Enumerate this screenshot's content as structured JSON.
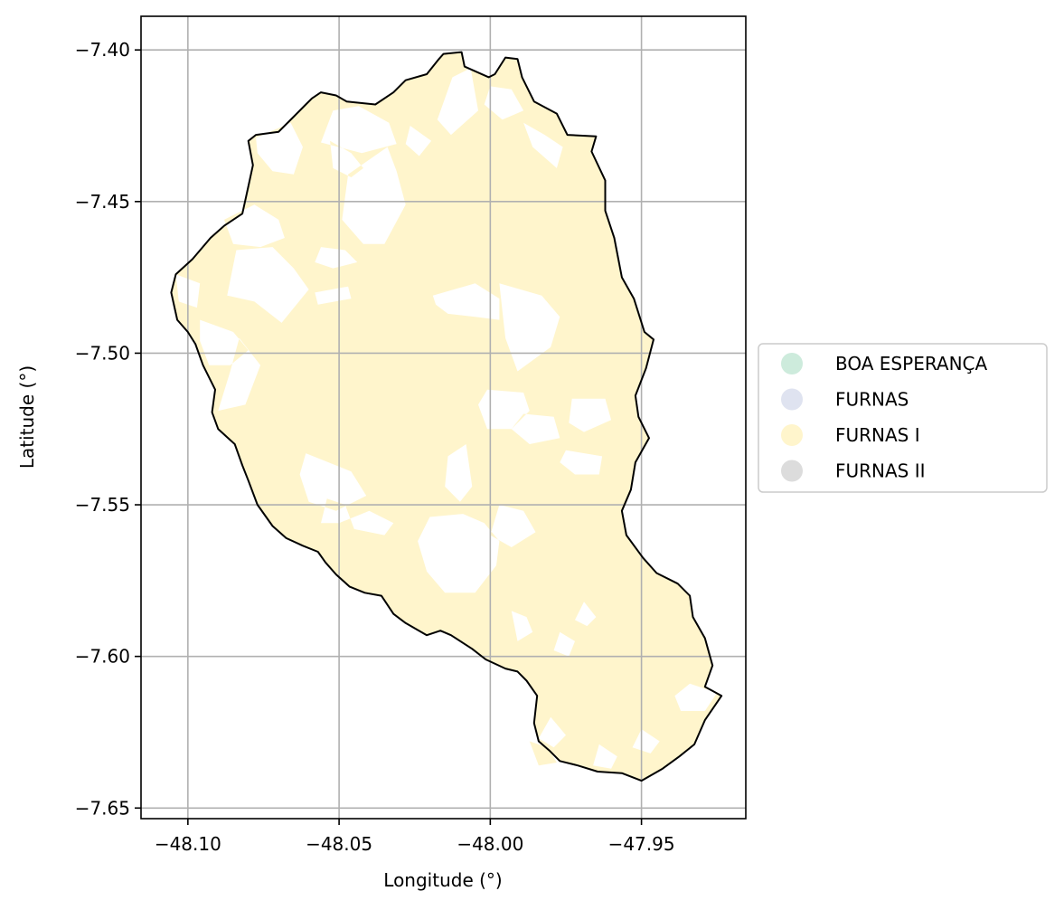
{
  "map": {
    "xlabel": "Longitude (°)",
    "ylabel": "Latitude (°)",
    "xlim": [
      -48.1155,
      -47.9155
    ],
    "ylim": [
      -7.6535,
      -7.3889
    ],
    "x_ticks": [
      {
        "value": -48.1,
        "label": "−48.10"
      },
      {
        "value": -48.05,
        "label": "−48.05"
      },
      {
        "value": -48.0,
        "label": "−48.00"
      },
      {
        "value": -47.95,
        "label": "−47.95"
      }
    ],
    "y_ticks": [
      {
        "value": -7.4,
        "label": "−7.40"
      },
      {
        "value": -7.45,
        "label": "−7.45"
      },
      {
        "value": -7.5,
        "label": "−7.50"
      },
      {
        "value": -7.55,
        "label": "−7.55"
      },
      {
        "value": -7.6,
        "label": "−7.60"
      },
      {
        "value": -7.65,
        "label": "−7.65"
      }
    ],
    "grid": true,
    "fill_color": "#fff5cc",
    "boundary_color": "#000000",
    "grid_color": "#b0b0b0",
    "boundary": [
      [
        -48.0155,
        -7.4013
      ],
      [
        -48.0095,
        -7.4007
      ],
      [
        -48.0085,
        -7.4055
      ],
      [
        -48.0005,
        -7.409
      ],
      [
        -47.9985,
        -7.408
      ],
      [
        -47.995,
        -7.4025
      ],
      [
        -47.991,
        -7.403
      ],
      [
        -47.9895,
        -7.409
      ],
      [
        -47.9855,
        -7.417
      ],
      [
        -47.978,
        -7.421
      ],
      [
        -47.9745,
        -7.428
      ],
      [
        -47.965,
        -7.4285
      ],
      [
        -47.9665,
        -7.4335
      ],
      [
        -47.962,
        -7.443
      ],
      [
        -47.962,
        -7.453
      ],
      [
        -47.959,
        -7.462
      ],
      [
        -47.9565,
        -7.475
      ],
      [
        -47.9525,
        -7.482
      ],
      [
        -47.949,
        -7.493
      ],
      [
        -47.946,
        -7.4955
      ],
      [
        -47.9485,
        -7.505
      ],
      [
        -47.952,
        -7.514
      ],
      [
        -47.951,
        -7.521
      ],
      [
        -47.9475,
        -7.528
      ],
      [
        -47.952,
        -7.536
      ],
      [
        -47.9535,
        -7.545
      ],
      [
        -47.9565,
        -7.552
      ],
      [
        -47.955,
        -7.56
      ],
      [
        -47.9495,
        -7.5675
      ],
      [
        -47.945,
        -7.5725
      ],
      [
        -47.938,
        -7.576
      ],
      [
        -47.934,
        -7.58
      ],
      [
        -47.933,
        -7.587
      ],
      [
        -47.929,
        -7.594
      ],
      [
        -47.9265,
        -7.603
      ],
      [
        -47.929,
        -7.61
      ],
      [
        -47.9235,
        -7.613
      ],
      [
        -47.929,
        -7.621
      ],
      [
        -47.9325,
        -7.629
      ],
      [
        -47.9375,
        -7.633
      ],
      [
        -47.943,
        -7.637
      ],
      [
        -47.95,
        -7.641
      ],
      [
        -47.9565,
        -7.6385
      ],
      [
        -47.9645,
        -7.638
      ],
      [
        -47.971,
        -7.636
      ],
      [
        -47.977,
        -7.6345
      ],
      [
        -47.9805,
        -7.631
      ],
      [
        -47.984,
        -7.628
      ],
      [
        -47.9855,
        -7.622
      ],
      [
        -47.9845,
        -7.613
      ],
      [
        -47.988,
        -7.608
      ],
      [
        -47.991,
        -7.605
      ],
      [
        -47.995,
        -7.604
      ],
      [
        -48.0015,
        -7.601
      ],
      [
        -48.006,
        -7.5975
      ],
      [
        -48.013,
        -7.593
      ],
      [
        -48.0165,
        -7.5915
      ],
      [
        -48.021,
        -7.593
      ],
      [
        -48.028,
        -7.589
      ],
      [
        -48.032,
        -7.586
      ],
      [
        -48.036,
        -7.58
      ],
      [
        -48.0415,
        -7.579
      ],
      [
        -48.0465,
        -7.577
      ],
      [
        -48.051,
        -7.573
      ],
      [
        -48.0545,
        -7.569
      ],
      [
        -48.057,
        -7.5655
      ],
      [
        -48.062,
        -7.5635
      ],
      [
        -48.0675,
        -7.561
      ],
      [
        -48.072,
        -7.557
      ],
      [
        -48.077,
        -7.55
      ],
      [
        -48.08,
        -7.542
      ],
      [
        -48.082,
        -7.537
      ],
      [
        -48.0845,
        -7.53
      ],
      [
        -48.09,
        -7.525
      ],
      [
        -48.092,
        -7.5195
      ],
      [
        -48.091,
        -7.512
      ],
      [
        -48.095,
        -7.504
      ],
      [
        -48.0975,
        -7.497
      ],
      [
        -48.1,
        -7.493
      ],
      [
        -48.1035,
        -7.489
      ],
      [
        -48.1055,
        -7.48
      ],
      [
        -48.104,
        -7.474
      ],
      [
        -48.0985,
        -7.469
      ],
      [
        -48.0925,
        -7.462
      ],
      [
        -48.088,
        -7.458
      ],
      [
        -48.082,
        -7.454
      ],
      [
        -48.08,
        -7.445
      ],
      [
        -48.0785,
        -7.438
      ],
      [
        -48.08,
        -7.43
      ],
      [
        -48.0775,
        -7.428
      ],
      [
        -48.07,
        -7.427
      ],
      [
        -48.065,
        -7.422
      ],
      [
        -48.061,
        -7.418
      ],
      [
        -48.059,
        -7.416
      ],
      [
        -48.056,
        -7.414
      ],
      [
        -48.051,
        -7.415
      ],
      [
        -48.0475,
        -7.417
      ],
      [
        -48.038,
        -7.418
      ],
      [
        -48.032,
        -7.414
      ],
      [
        -48.028,
        -7.41
      ],
      [
        -48.021,
        -7.408
      ],
      [
        -48.017,
        -7.403
      ],
      [
        -48.0155,
        -7.4013
      ]
    ],
    "gaps": [
      [
        [
          -48.0435,
          -7.4185
        ],
        [
          -48.0335,
          -7.424
        ],
        [
          -48.031,
          -7.431
        ],
        [
          -48.0425,
          -7.434
        ],
        [
          -48.056,
          -7.4305
        ],
        [
          -48.052,
          -7.42
        ]
      ],
      [
        [
          -48.0775,
          -7.429
        ],
        [
          -48.066,
          -7.424
        ],
        [
          -48.062,
          -7.432
        ],
        [
          -48.065,
          -7.441
        ],
        [
          -48.072,
          -7.44
        ],
        [
          -48.077,
          -7.434
        ]
      ],
      [
        [
          -48.053,
          -7.43
        ],
        [
          -48.046,
          -7.434
        ],
        [
          -48.042,
          -7.439
        ],
        [
          -48.046,
          -7.442
        ],
        [
          -48.052,
          -7.439
        ]
      ],
      [
        [
          -48.0125,
          -7.409
        ],
        [
          -48.0065,
          -7.406
        ],
        [
          -48.004,
          -7.42
        ],
        [
          -48.013,
          -7.428
        ],
        [
          -48.0175,
          -7.423
        ]
      ],
      [
        [
          -48.0265,
          -7.425
        ],
        [
          -48.0195,
          -7.43
        ],
        [
          -48.0235,
          -7.435
        ],
        [
          -48.028,
          -7.431
        ]
      ],
      [
        [
          -48.0,
          -7.412
        ],
        [
          -47.993,
          -7.413
        ],
        [
          -47.989,
          -7.42
        ],
        [
          -47.996,
          -7.423
        ],
        [
          -48.002,
          -7.418
        ]
      ],
      [
        [
          -47.989,
          -7.424
        ],
        [
          -47.982,
          -7.428
        ],
        [
          -47.976,
          -7.432
        ],
        [
          -47.978,
          -7.439
        ],
        [
          -47.986,
          -7.432
        ]
      ],
      [
        [
          -48.034,
          -7.432
        ],
        [
          -48.047,
          -7.441
        ],
        [
          -48.049,
          -7.456
        ],
        [
          -48.042,
          -7.464
        ],
        [
          -48.035,
          -7.464
        ],
        [
          -48.028,
          -7.451
        ],
        [
          -48.031,
          -7.44
        ]
      ],
      [
        [
          -48.088,
          -7.456
        ],
        [
          -48.078,
          -7.451
        ],
        [
          -48.07,
          -7.456
        ],
        [
          -48.068,
          -7.462
        ],
        [
          -48.076,
          -7.465
        ],
        [
          -48.085,
          -7.464
        ]
      ],
      [
        [
          -48.084,
          -7.466
        ],
        [
          -48.072,
          -7.465
        ],
        [
          -48.065,
          -7.472
        ],
        [
          -48.06,
          -7.479
        ],
        [
          -48.069,
          -7.49
        ],
        [
          -48.078,
          -7.483
        ],
        [
          -48.087,
          -7.481
        ]
      ],
      [
        [
          -48.056,
          -7.465
        ],
        [
          -48.048,
          -7.466
        ],
        [
          -48.044,
          -7.47
        ],
        [
          -48.052,
          -7.472
        ],
        [
          -48.058,
          -7.47
        ]
      ],
      [
        [
          -48.104,
          -7.474
        ],
        [
          -48.096,
          -7.477
        ],
        [
          -48.097,
          -7.485
        ],
        [
          -48.103,
          -7.483
        ]
      ],
      [
        [
          -48.058,
          -7.48
        ],
        [
          -48.047,
          -7.478
        ],
        [
          -48.046,
          -7.482
        ],
        [
          -48.057,
          -7.484
        ]
      ],
      [
        [
          -48.019,
          -7.481
        ],
        [
          -48.005,
          -7.477
        ],
        [
          -47.997,
          -7.482
        ],
        [
          -47.997,
          -7.489
        ],
        [
          -48.005,
          -7.488
        ],
        [
          -48.014,
          -7.487
        ],
        [
          -48.018,
          -7.484
        ]
      ],
      [
        [
          -47.997,
          -7.477
        ],
        [
          -47.983,
          -7.481
        ],
        [
          -47.977,
          -7.488
        ],
        [
          -47.98,
          -7.498
        ],
        [
          -47.991,
          -7.506
        ],
        [
          -47.995,
          -7.495
        ],
        [
          -47.996,
          -7.486
        ]
      ],
      [
        [
          -48.096,
          -7.489
        ],
        [
          -48.085,
          -7.493
        ],
        [
          -48.08,
          -7.499
        ],
        [
          -48.086,
          -7.504
        ],
        [
          -48.093,
          -7.504
        ],
        [
          -48.096,
          -7.496
        ]
      ],
      [
        [
          -48.083,
          -7.495
        ],
        [
          -48.076,
          -7.504
        ],
        [
          -48.081,
          -7.517
        ],
        [
          -48.09,
          -7.519
        ],
        [
          -48.086,
          -7.506
        ]
      ],
      [
        [
          -48.001,
          -7.512
        ],
        [
          -47.989,
          -7.513
        ],
        [
          -47.987,
          -7.519
        ],
        [
          -47.993,
          -7.525
        ],
        [
          -48.001,
          -7.525
        ],
        [
          -48.004,
          -7.517
        ]
      ],
      [
        [
          -47.989,
          -7.52
        ],
        [
          -47.979,
          -7.521
        ],
        [
          -47.977,
          -7.528
        ],
        [
          -47.987,
          -7.53
        ],
        [
          -47.993,
          -7.525
        ]
      ],
      [
        [
          -47.973,
          -7.515
        ],
        [
          -47.962,
          -7.515
        ],
        [
          -47.96,
          -7.522
        ],
        [
          -47.969,
          -7.526
        ],
        [
          -47.974,
          -7.523
        ]
      ],
      [
        [
          -47.975,
          -7.532
        ],
        [
          -47.963,
          -7.534
        ],
        [
          -47.964,
          -7.54
        ],
        [
          -47.972,
          -7.54
        ],
        [
          -47.977,
          -7.536
        ]
      ],
      [
        [
          -48.061,
          -7.533
        ],
        [
          -48.046,
          -7.539
        ],
        [
          -48.041,
          -7.547
        ],
        [
          -48.051,
          -7.552
        ],
        [
          -48.06,
          -7.549
        ],
        [
          -48.063,
          -7.54
        ]
      ],
      [
        [
          -48.008,
          -7.53
        ],
        [
          -48.014,
          -7.534
        ],
        [
          -48.015,
          -7.544
        ],
        [
          -48.01,
          -7.549
        ],
        [
          -48.006,
          -7.544
        ]
      ],
      [
        [
          -48.054,
          -7.548
        ],
        [
          -48.048,
          -7.55
        ],
        [
          -48.045,
          -7.558
        ],
        [
          -48.035,
          -7.56
        ],
        [
          -48.032,
          -7.556
        ],
        [
          -48.04,
          -7.552
        ],
        [
          -48.05,
          -7.556
        ],
        [
          -48.056,
          -7.556
        ]
      ],
      [
        [
          -48.02,
          -7.554
        ],
        [
          -48.009,
          -7.553
        ],
        [
          -48.002,
          -7.556
        ],
        [
          -47.997,
          -7.562
        ],
        [
          -47.998,
          -7.57
        ],
        [
          -48.005,
          -7.579
        ],
        [
          -48.015,
          -7.579
        ],
        [
          -48.021,
          -7.572
        ],
        [
          -48.024,
          -7.562
        ]
      ],
      [
        [
          -47.997,
          -7.55
        ],
        [
          -47.989,
          -7.552
        ],
        [
          -47.985,
          -7.559
        ],
        [
          -47.993,
          -7.564
        ],
        [
          -48.0,
          -7.56
        ]
      ],
      [
        [
          -47.969,
          -7.582
        ],
        [
          -47.965,
          -7.587
        ],
        [
          -47.968,
          -7.59
        ],
        [
          -47.972,
          -7.588
        ]
      ],
      [
        [
          -47.993,
          -7.585
        ],
        [
          -47.988,
          -7.587
        ],
        [
          -47.986,
          -7.592
        ],
        [
          -47.991,
          -7.595
        ]
      ],
      [
        [
          -47.977,
          -7.592
        ],
        [
          -47.972,
          -7.595
        ],
        [
          -47.974,
          -7.6
        ],
        [
          -47.979,
          -7.598
        ]
      ],
      [
        [
          -47.934,
          -7.609
        ],
        [
          -47.925,
          -7.612
        ],
        [
          -47.929,
          -7.618
        ],
        [
          -47.937,
          -7.618
        ],
        [
          -47.939,
          -7.613
        ]
      ],
      [
        [
          -47.98,
          -7.62
        ],
        [
          -47.975,
          -7.626
        ],
        [
          -47.979,
          -7.63
        ],
        [
          -47.984,
          -7.627
        ]
      ],
      [
        [
          -47.987,
          -7.628
        ],
        [
          -47.981,
          -7.63
        ],
        [
          -47.978,
          -7.635
        ],
        [
          -47.984,
          -7.636
        ]
      ],
      [
        [
          -47.964,
          -7.629
        ],
        [
          -47.958,
          -7.633
        ],
        [
          -47.96,
          -7.637
        ],
        [
          -47.966,
          -7.636
        ]
      ],
      [
        [
          -47.95,
          -7.624
        ],
        [
          -47.944,
          -7.628
        ],
        [
          -47.947,
          -7.632
        ],
        [
          -47.953,
          -7.63
        ]
      ]
    ]
  },
  "legend": {
    "items": [
      {
        "label": "BOA ESPERANÇA",
        "color": "#cdebdc"
      },
      {
        "label": "FURNAS",
        "color": "#dfe3f0"
      },
      {
        "label": "FURNAS I",
        "color": "#fff5cc"
      },
      {
        "label": "FURNAS II",
        "color": "#dcdcdc"
      }
    ]
  }
}
